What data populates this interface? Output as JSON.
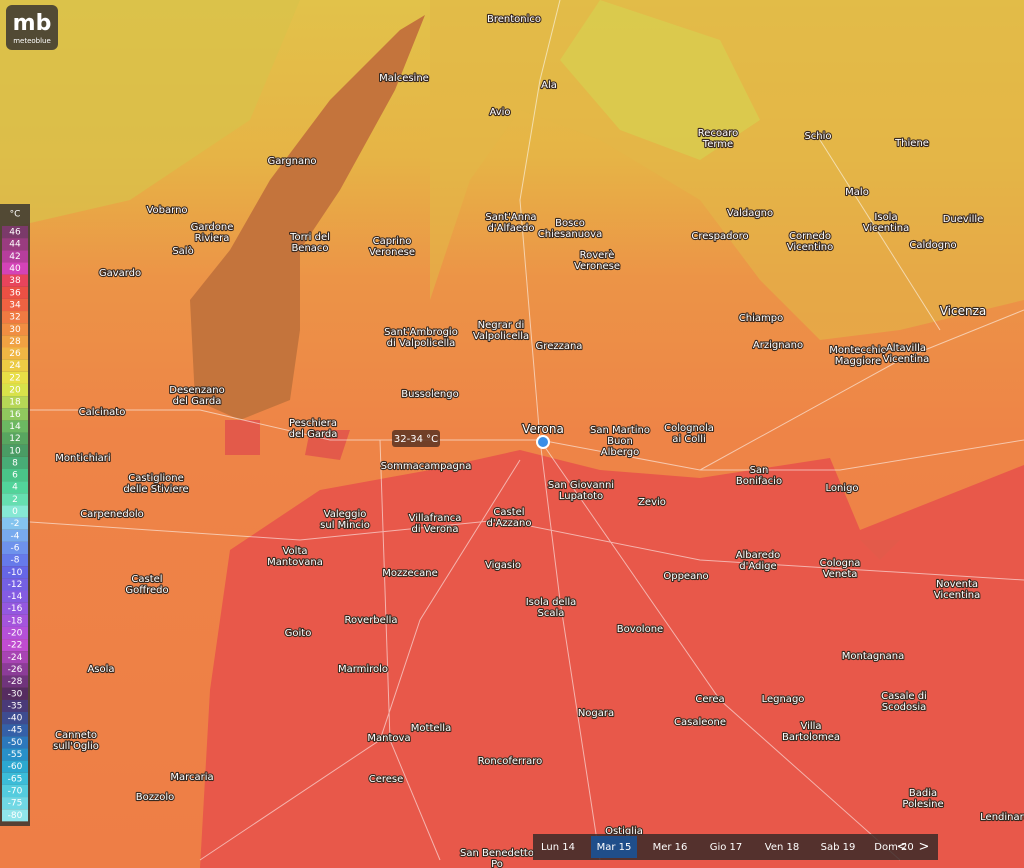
{
  "logo": {
    "mark": "mb",
    "name": "meteoblue"
  },
  "legend": {
    "unit": "°C",
    "values": [
      46,
      44,
      42,
      40,
      38,
      36,
      34,
      32,
      30,
      28,
      26,
      24,
      22,
      20,
      18,
      16,
      14,
      12,
      10,
      8,
      6,
      4,
      2,
      0,
      -2,
      -4,
      -6,
      -8,
      -10,
      -12,
      -14,
      -16,
      -18,
      -20,
      -22,
      -24,
      -26,
      -28,
      -30,
      -35,
      -40,
      -45,
      -50,
      -55,
      -60,
      -65,
      -70,
      -75,
      -80
    ]
  },
  "tooltip": "32-34 °C",
  "places": [
    [
      "Brentonico"
    ],
    [
      "Malcesine"
    ],
    [
      "Ala"
    ],
    [
      "Avio"
    ],
    [
      "Recoaro",
      "Terme"
    ],
    [
      "Schio"
    ],
    [
      "Thiene"
    ],
    [
      "Gargnano"
    ],
    [
      "Malo"
    ],
    [
      "Vobarno"
    ],
    [
      "Gardone",
      "Riviera"
    ],
    [
      "Salò"
    ],
    [
      "Torri del",
      "Benaco"
    ],
    [
      "Caprino",
      "Veronese"
    ],
    [
      "Sant'Anna",
      "d'Alfaedo"
    ],
    [
      "Bosco",
      "Chiesanuova"
    ],
    [
      "Crespadoro"
    ],
    [
      "Valdagno"
    ],
    [
      "Isola",
      "Vicentina"
    ],
    [
      "Dueville"
    ],
    [
      "Cornedo",
      "Vicentino"
    ],
    [
      "Caldogno"
    ],
    [
      "Roverè",
      "Veronese"
    ],
    [
      "Gavardo"
    ],
    [
      "Chiampo"
    ],
    [
      "Vicenza"
    ],
    [
      "Sant'Ambrogio",
      "di Valpolicella"
    ],
    [
      "Negrar di",
      "Valpolicella"
    ],
    [
      "Grezzana"
    ],
    [
      "Arzignano"
    ],
    [
      "Montecchio",
      "Maggiore"
    ],
    [
      "Altavilla",
      "Vicentina"
    ],
    [
      "Desenzano",
      "del Garda"
    ],
    [
      "Bussolengo"
    ],
    [
      "Calcinato"
    ],
    [
      "Peschiera",
      "del Garda"
    ],
    [
      "Verona"
    ],
    [
      "San Martino",
      "Buon",
      "Albergo"
    ],
    [
      "Colognola",
      "ai Colli"
    ],
    [
      "Montichiari"
    ],
    [
      "Sommacampagna"
    ],
    [
      "San",
      "Bonifacio"
    ],
    [
      "Castiglione",
      "delle Stiviere"
    ],
    [
      "San Giovanni",
      "Lupatoto"
    ],
    [
      "Zevio"
    ],
    [
      "Lonigo"
    ],
    [
      "Carpenedolo"
    ],
    [
      "Valeggio",
      "sul Mincio"
    ],
    [
      "Villafranca",
      "di Verona"
    ],
    [
      "Castel",
      "d'Azzano"
    ],
    [
      "Volta",
      "Mantovana"
    ],
    [
      "Albaredo",
      "d'Adige"
    ],
    [
      "Cologna",
      "Veneta"
    ],
    [
      "Vigasio"
    ],
    [
      "Mozzecane"
    ],
    [
      "Oppeano"
    ],
    [
      "Castel",
      "Goffredo"
    ],
    [
      "Noventa",
      "Vicentina"
    ],
    [
      "Isola della",
      "Scala"
    ],
    [
      "Roverbella"
    ],
    [
      "Goito"
    ],
    [
      "Bovolone"
    ],
    [
      "Montagnana"
    ],
    [
      "Asola"
    ],
    [
      "Marmirolo"
    ],
    [
      "Cerea"
    ],
    [
      "Legnago"
    ],
    [
      "Casale di",
      "Scodosia"
    ],
    [
      "Nogara"
    ],
    [
      "Casaleone"
    ],
    [
      "Villa",
      "Bartolomea"
    ],
    [
      "Mottella"
    ],
    [
      "Canneto",
      "sull'Oglio"
    ],
    [
      "Mantova"
    ],
    [
      "Marcaria"
    ],
    [
      "Roncoferraro"
    ],
    [
      "Cerese"
    ],
    [
      "Bozzolo"
    ],
    [
      "Badia",
      "Polesine"
    ],
    [
      "Lendinara"
    ],
    [
      "Ostiglia"
    ],
    [
      "San Benedetto",
      "Po"
    ]
  ],
  "days": [
    "Lun 14",
    "Mar 15",
    "Mer 16",
    "Gio 17",
    "Ven 18",
    "Sab 19",
    "Dom 20"
  ],
  "active_day": 1,
  "nav": [
    "<",
    ">"
  ]
}
